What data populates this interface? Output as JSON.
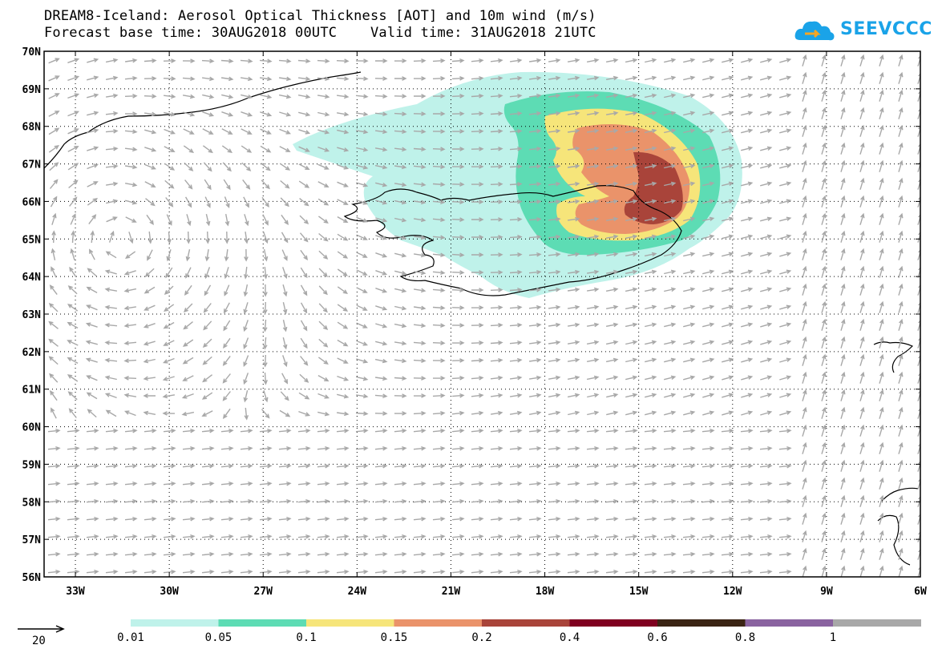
{
  "title": {
    "line1": "DREAM8-Iceland: Aerosol Optical Thickness [AOT] and 10m wind (m/s)",
    "line2": "Forecast base time: 30AUG2018 00UTC    Valid time: 31AUG2018 21UTC"
  },
  "logo": {
    "text": "SEEVCCC",
    "icon": "cloud-logo-icon",
    "color": "#1aa3e8"
  },
  "map": {
    "lon_range": [
      -34,
      -6
    ],
    "lat_range": [
      56,
      70
    ],
    "lon_ticks": [
      {
        "value": -33,
        "label": "33W"
      },
      {
        "value": -30,
        "label": "30W"
      },
      {
        "value": -27,
        "label": "27W"
      },
      {
        "value": -24,
        "label": "24W"
      },
      {
        "value": -21,
        "label": "21W"
      },
      {
        "value": -18,
        "label": "18W"
      },
      {
        "value": -15,
        "label": "15W"
      },
      {
        "value": -12,
        "label": "12W"
      },
      {
        "value": -9,
        "label": "9W"
      },
      {
        "value": -6,
        "label": "6W"
      }
    ],
    "lat_ticks": [
      {
        "value": 70,
        "label": "70N"
      },
      {
        "value": 69,
        "label": "69N"
      },
      {
        "value": 68,
        "label": "68N"
      },
      {
        "value": 67,
        "label": "67N"
      },
      {
        "value": 66,
        "label": "66N"
      },
      {
        "value": 65,
        "label": "65N"
      },
      {
        "value": 64,
        "label": "64N"
      },
      {
        "value": 63,
        "label": "63N"
      },
      {
        "value": 62,
        "label": "62N"
      },
      {
        "value": 61,
        "label": "61N"
      },
      {
        "value": 60,
        "label": "60N"
      },
      {
        "value": 59,
        "label": "59N"
      },
      {
        "value": 58,
        "label": "58N"
      },
      {
        "value": 57,
        "label": "57N"
      },
      {
        "value": 56,
        "label": "56N"
      }
    ],
    "gridlines": "dotted",
    "wind_arrow_color": "#a8a8a8",
    "coast_color": "#000000"
  },
  "colorbar": {
    "colors": [
      "#bff2ea",
      "#5ddcb4",
      "#f6e57a",
      "#ea936a",
      "#a9443a",
      "#7f0020",
      "#3b2414",
      "#8a63a0",
      "#a8a8a8"
    ],
    "labels": [
      "0.01",
      "0.05",
      "0.1",
      "0.15",
      "0.2",
      "0.4",
      "0.6",
      "0.8",
      "1"
    ]
  },
  "reference_vector": {
    "label": "20"
  }
}
